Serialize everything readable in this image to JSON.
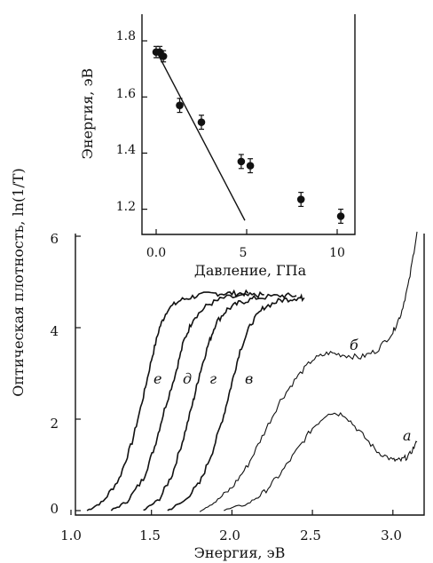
{
  "chart_data": [
    {
      "type": "line",
      "xlabel": "Энергия, эВ",
      "ylabel": "Оптическая плотность, ln(1/T)",
      "xlim": [
        1.0,
        3.2
      ],
      "ylim": [
        0,
        6.2
      ],
      "x_ticks": [
        "1.0",
        "1.5",
        "2.0",
        "2.5",
        "3.0"
      ],
      "y_ticks": [
        "0",
        "2",
        "4",
        "6"
      ],
      "grid": false,
      "series": [
        {
          "name": "е",
          "x": [
            1.1,
            1.2,
            1.3,
            1.38,
            1.45,
            1.5,
            1.55,
            1.6,
            1.68,
            1.78,
            1.9,
            2.0,
            2.1
          ],
          "y": [
            0.0,
            0.2,
            0.7,
            1.5,
            2.5,
            3.3,
            4.0,
            4.4,
            4.6,
            4.7,
            4.75,
            4.75,
            4.75
          ]
        },
        {
          "name": "д",
          "x": [
            1.25,
            1.35,
            1.45,
            1.52,
            1.58,
            1.65,
            1.7,
            1.76,
            1.85,
            1.95,
            2.1,
            2.2
          ],
          "y": [
            0.0,
            0.2,
            0.7,
            1.4,
            2.2,
            3.0,
            3.7,
            4.2,
            4.5,
            4.65,
            4.7,
            4.72
          ]
        },
        {
          "name": "г",
          "x": [
            1.45,
            1.55,
            1.63,
            1.7,
            1.76,
            1.8,
            1.85,
            1.9,
            1.97,
            2.05,
            2.15,
            2.3,
            2.4
          ],
          "y": [
            0.0,
            0.25,
            0.8,
            1.6,
            2.4,
            3.0,
            3.6,
            4.1,
            4.4,
            4.55,
            4.65,
            4.7,
            4.7
          ]
        },
        {
          "name": "в",
          "x": [
            1.6,
            1.7,
            1.8,
            1.88,
            1.95,
            2.0,
            2.05,
            2.12,
            2.2,
            2.3,
            2.4,
            2.45
          ],
          "y": [
            0.0,
            0.2,
            0.6,
            1.3,
            2.1,
            2.8,
            3.5,
            4.1,
            4.45,
            4.6,
            4.65,
            4.65
          ]
        },
        {
          "name": "б",
          "x": [
            1.8,
            1.9,
            2.0,
            2.1,
            2.2,
            2.3,
            2.4,
            2.5,
            2.6,
            2.7,
            2.8,
            2.9,
            3.0,
            3.05,
            3.1,
            3.15
          ],
          "y": [
            0.0,
            0.2,
            0.5,
            1.0,
            1.7,
            2.4,
            2.9,
            3.3,
            3.45,
            3.4,
            3.35,
            3.5,
            3.9,
            4.3,
            5.0,
            6.1
          ]
        },
        {
          "name": "а",
          "x": [
            1.95,
            2.1,
            2.2,
            2.3,
            2.4,
            2.5,
            2.6,
            2.7,
            2.8,
            2.9,
            3.0,
            3.05,
            3.1,
            3.15
          ],
          "y": [
            0.0,
            0.15,
            0.4,
            0.8,
            1.3,
            1.8,
            2.15,
            2.1,
            1.7,
            1.3,
            1.1,
            1.1,
            1.2,
            1.5
          ]
        }
      ]
    },
    {
      "type": "scatter",
      "xlabel": "Давление, ГПа",
      "ylabel": "Энергия, эВ",
      "xlim": [
        -0.8,
        11.5
      ],
      "ylim": [
        1.1,
        1.82
      ],
      "x_ticks": [
        "0.0",
        "5",
        "10"
      ],
      "y_ticks": [
        "1.2",
        "1.4",
        "1.6",
        "1.8"
      ],
      "points": {
        "x": [
          0.0,
          0.2,
          0.4,
          1.3,
          2.5,
          4.7,
          5.2,
          8.0,
          10.2
        ],
        "y": [
          1.76,
          1.76,
          1.745,
          1.57,
          1.51,
          1.37,
          1.355,
          1.235,
          1.175
        ],
        "err": [
          0.02,
          0.02,
          0.02,
          0.025,
          0.025,
          0.025,
          0.025,
          0.025,
          0.025
        ]
      },
      "fit_line": {
        "x": [
          0.0,
          4.9
        ],
        "y": [
          1.765,
          1.16
        ]
      }
    }
  ]
}
